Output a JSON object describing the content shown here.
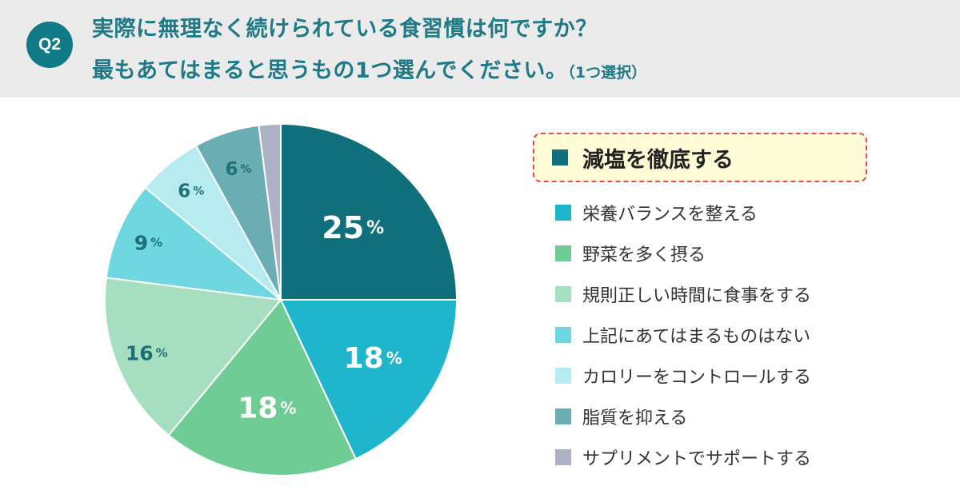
{
  "header": {
    "badge": "Q2",
    "question_line1": "実際に無理なく続けられている食習慣は何ですか？",
    "question_line2": "最もあてはまると思うもの1つ選んでください。",
    "question_note": "（1つ選択）"
  },
  "chart_data": {
    "type": "pie",
    "title": "",
    "labels": [
      "減塩を徹底する",
      "栄養バランスを整える",
      "野菜を多く摂る",
      "規則正しい時間に食事をする",
      "上記にあてはまるものはない",
      "カロリーをコントロールする",
      "脂質を抑える",
      "サプリメントでサポートする"
    ],
    "values": [
      25,
      18,
      18,
      16,
      9,
      6,
      6,
      2
    ],
    "value_labels": [
      "25",
      "18",
      "18",
      "16",
      "9",
      "6",
      "6",
      ""
    ],
    "percent_sign": "%",
    "colors": [
      "#0f6f7b",
      "#1fb5cc",
      "#6fcc94",
      "#a5dfbf",
      "#6fd7df",
      "#b6ecf0",
      "#6aaeb4",
      "#aeb0c6"
    ],
    "label_colors": [
      "#ffffff",
      "#ffffff",
      "#ffffff",
      "#1f6f78",
      "#1f6f78",
      "#1f6f78",
      "#1f6f78",
      "#1f6f78"
    ],
    "highlighted_index": 0,
    "start_angle_deg": 0,
    "direction": "clockwise",
    "legend_position": "right"
  }
}
